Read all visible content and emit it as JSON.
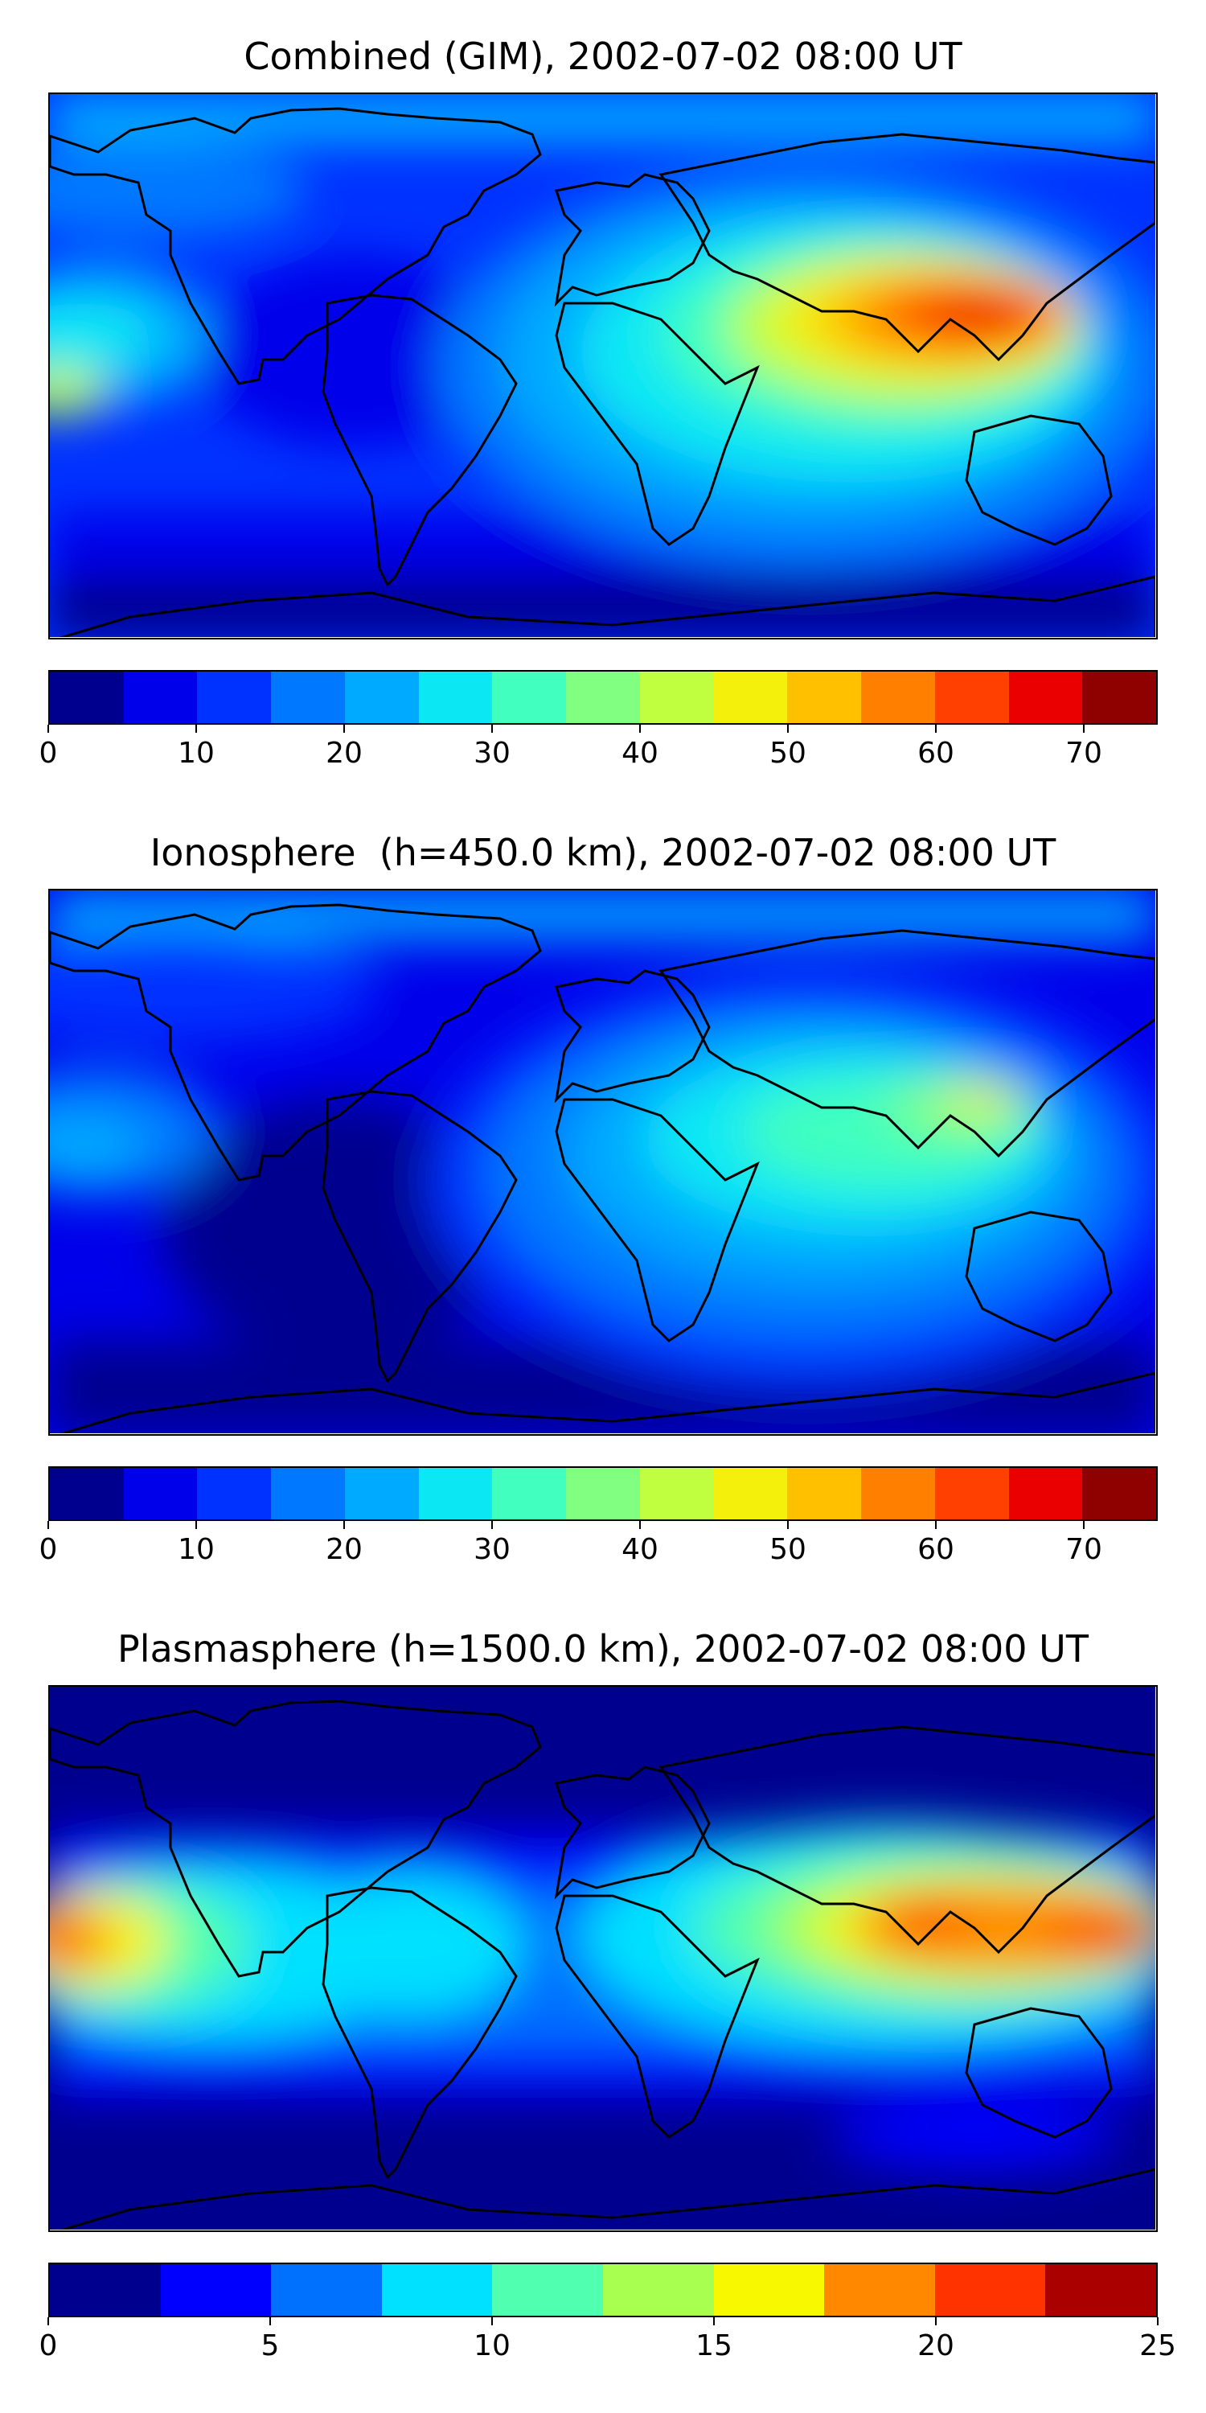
{
  "panels": [
    {
      "id": "combined",
      "title": "Combined (GIM), 2002-07-02 08:00 UT",
      "colorbar": {
        "min": 0,
        "max": 75,
        "step": 5,
        "tick_labels": [
          "0",
          "10",
          "20",
          "30",
          "40",
          "50",
          "60",
          "70"
        ],
        "tick_values": [
          0,
          10,
          20,
          30,
          40,
          50,
          60,
          70
        ],
        "colors": [
          "#00008f",
          "#0000ea",
          "#0032ff",
          "#0078ff",
          "#00aaff",
          "#0be8f4",
          "#40ffbf",
          "#80ff80",
          "#bfff40",
          "#f4f00b",
          "#ffc000",
          "#ff8000",
          "#ff4000",
          "#ea0000",
          "#8f0000"
        ]
      }
    },
    {
      "id": "ionosphere",
      "title": "Ionosphere  (h=450.0 km), 2002-07-02 08:00 UT",
      "colorbar": {
        "min": 0,
        "max": 75,
        "step": 5,
        "tick_labels": [
          "0",
          "10",
          "20",
          "30",
          "40",
          "50",
          "60",
          "70"
        ],
        "tick_values": [
          0,
          10,
          20,
          30,
          40,
          50,
          60,
          70
        ],
        "colors": [
          "#00008f",
          "#0000ea",
          "#0032ff",
          "#0078ff",
          "#00aaff",
          "#0be8f4",
          "#40ffbf",
          "#80ff80",
          "#bfff40",
          "#f4f00b",
          "#ffc000",
          "#ff8000",
          "#ff4000",
          "#ea0000",
          "#8f0000"
        ]
      }
    },
    {
      "id": "plasmasphere",
      "title": "Plasmasphere (h=1500.0 km), 2002-07-02 08:00 UT",
      "colorbar": {
        "min": 0,
        "max": 25,
        "step": 2.5,
        "tick_labels": [
          "0",
          "5",
          "10",
          "15",
          "20",
          "25"
        ],
        "tick_values": [
          0,
          5,
          10,
          15,
          20,
          25
        ],
        "colors": [
          "#00008f",
          "#0000ff",
          "#0070ff",
          "#00e0ff",
          "#50ffaf",
          "#a8ff50",
          "#f8f800",
          "#ff8800",
          "#ff3300",
          "#aa0000"
        ]
      }
    }
  ]
}
